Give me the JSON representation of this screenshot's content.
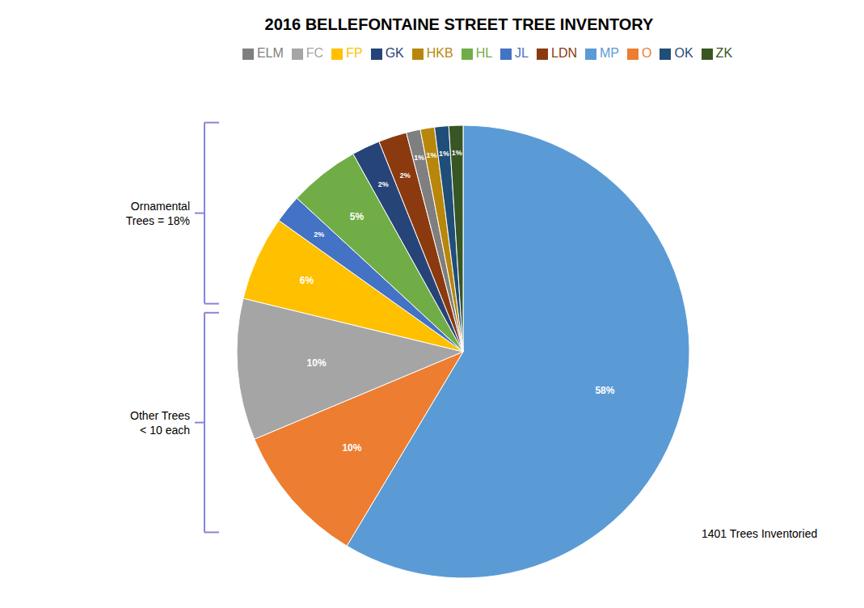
{
  "chart_data": {
    "type": "pie",
    "title": "2016 BELLEFONTAINE STREET TREE INVENTORY",
    "categories": [
      "MP",
      "O",
      "FC",
      "FP",
      "JL",
      "HL",
      "GK",
      "LDN",
      "ELM",
      "HKB",
      "OK",
      "ZK"
    ],
    "values": [
      58,
      10,
      10,
      6,
      2,
      5,
      2,
      2,
      1,
      1,
      1,
      1
    ],
    "value_labels": [
      "58%",
      "10%",
      "10%",
      "6%",
      "2%",
      "5%",
      "2%",
      "2%",
      "1%",
      "1%",
      "1%",
      "1%"
    ],
    "colors": [
      "#5B9BD5",
      "#ED7D31",
      "#A5A5A5",
      "#FFC000",
      "#4472C4",
      "#70AD47",
      "#264478",
      "#8B3A0F",
      "#7F7F7F",
      "#B8860B",
      "#1F4E79",
      "#375623"
    ],
    "data_labels": true,
    "legend": "top",
    "annotations": [
      "Ornamental\nTrees = 18%",
      "Other Trees\n< 10 each",
      "1401 Trees Inventoried"
    ]
  }
}
